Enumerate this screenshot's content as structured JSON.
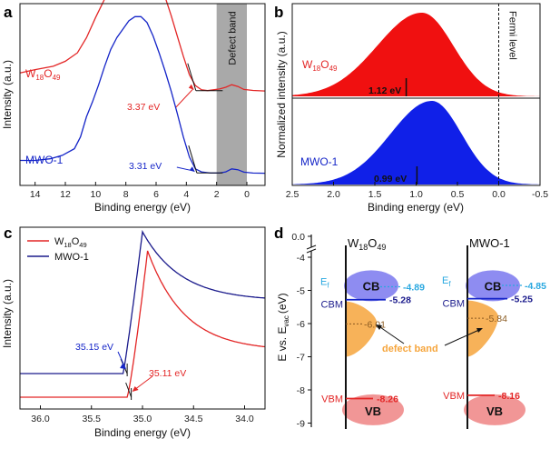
{
  "colors": {
    "red": "#e32626",
    "blue": "#1525c8",
    "navy": "#1b1b8c",
    "cyan": "#29a8e0",
    "orange": "#f6a53c",
    "gray": "#a9a9a9",
    "cbFill": "#7a78ee",
    "vbFill": "#f08b8b"
  },
  "panelA": {
    "label": "a",
    "xlabel": "Binding energy (eV)",
    "ylabel": "Intensity (a.u.)",
    "xticks": [
      "14",
      "12",
      "10",
      "8",
      "6",
      "4",
      "2",
      "0"
    ],
    "xlim": [
      15,
      -1.2
    ],
    "defectBandLabel": "Defect band",
    "defectBandRange": [
      2,
      0
    ],
    "series": [
      {
        "name": "W18O49",
        "base": "W",
        "sub1": "18",
        "mid": "O",
        "sub2": "49",
        "color": "#e32626",
        "edgeText": "3.37 eV",
        "edge": 3.37,
        "points": [
          [
            15,
            0.62
          ],
          [
            14,
            0.64
          ],
          [
            12.8,
            0.66
          ],
          [
            12,
            0.69
          ],
          [
            11.2,
            0.74
          ],
          [
            10.6,
            0.83
          ],
          [
            10,
            0.95
          ],
          [
            9.4,
            1.06
          ],
          [
            8.8,
            1.15
          ],
          [
            8.2,
            1.25
          ],
          [
            7.8,
            1.31
          ],
          [
            7.4,
            1.33
          ],
          [
            7.0,
            1.32
          ],
          [
            6.6,
            1.29
          ],
          [
            6.2,
            1.23
          ],
          [
            5.8,
            1.16
          ],
          [
            5.4,
            1.07
          ],
          [
            5.0,
            0.96
          ],
          [
            4.6,
            0.84
          ],
          [
            4.2,
            0.72
          ],
          [
            3.8,
            0.61
          ],
          [
            3.4,
            0.545
          ],
          [
            3.0,
            0.52
          ],
          [
            2.6,
            0.515
          ],
          [
            2.2,
            0.52
          ],
          [
            1.8,
            0.525
          ],
          [
            1.4,
            0.535
          ],
          [
            1.0,
            0.55
          ],
          [
            0.6,
            0.54
          ],
          [
            0.2,
            0.522
          ],
          [
            -0.4,
            0.516
          ],
          [
            -1.2,
            0.513
          ]
        ]
      },
      {
        "name": "MWO-1",
        "color": "#1525c8",
        "edgeText": "3.31 eV",
        "edge": 3.31,
        "points": [
          [
            15,
            0.1
          ],
          [
            14,
            0.1
          ],
          [
            13,
            0.11
          ],
          [
            12.2,
            0.13
          ],
          [
            11.4,
            0.17
          ],
          [
            11,
            0.24
          ],
          [
            10.6,
            0.36
          ],
          [
            10.2,
            0.45
          ],
          [
            9.8,
            0.55
          ],
          [
            9.4,
            0.66
          ],
          [
            9,
            0.76
          ],
          [
            8.6,
            0.83
          ],
          [
            8.2,
            0.88
          ],
          [
            7.8,
            0.93
          ],
          [
            7.4,
            0.955
          ],
          [
            7.0,
            0.955
          ],
          [
            6.6,
            0.92
          ],
          [
            6.2,
            0.84
          ],
          [
            5.8,
            0.74
          ],
          [
            5.4,
            0.63
          ],
          [
            5.0,
            0.51
          ],
          [
            4.6,
            0.38
          ],
          [
            4.2,
            0.24
          ],
          [
            3.8,
            0.12
          ],
          [
            3.4,
            0.05
          ],
          [
            3.0,
            0.032
          ],
          [
            2.4,
            0.025
          ],
          [
            1.8,
            0.025
          ],
          [
            1.4,
            0.032
          ],
          [
            1.0,
            0.05
          ],
          [
            0.6,
            0.045
          ],
          [
            0.2,
            0.03
          ],
          [
            -0.4,
            0.025
          ],
          [
            -1.2,
            0.024
          ]
        ]
      }
    ]
  },
  "panelB": {
    "label": "b",
    "xlabel": "Binding energy (eV)",
    "ylabel": "Normalized  intensity (a.u.)",
    "xticks": [
      "2.5",
      "2.0",
      "1.5",
      "1.0",
      "0.5",
      "0.0",
      "-0.5"
    ],
    "xlim": [
      2.5,
      -0.5
    ],
    "fermiLabel": "Fermi level",
    "series": [
      {
        "name": "W18O49",
        "base": "W",
        "sub1": "18",
        "mid": "O",
        "sub2": "49",
        "color": "#f01010",
        "valueText": "1.12 eV",
        "value": 1.12,
        "center": 0.93,
        "left": 0.54,
        "right": 0.38
      },
      {
        "name": "MWO-1",
        "color": "#1020e8",
        "valueText": "0.99 eV",
        "value": 0.99,
        "center": 0.81,
        "left": 0.5,
        "right": 0.36
      }
    ]
  },
  "panelC": {
    "label": "c",
    "xlabel": "Binding energy (eV)",
    "ylabel": "Intensity (a.u.)",
    "xticks": [
      "36.0",
      "35.5",
      "35.0",
      "34.5",
      "34.0"
    ],
    "xlim": [
      36.2,
      33.8
    ],
    "legend": [
      {
        "name": "W18O49",
        "base": "W",
        "sub1": "18",
        "mid": "O",
        "sub2": "49",
        "color": "#e32626"
      },
      {
        "name": "MWO-1",
        "color": "#1b1b8c"
      }
    ],
    "annotations": [
      {
        "text": "35.15 eV",
        "value": 35.15,
        "color": "#1525c8"
      },
      {
        "text": "35.11 eV",
        "value": 35.11,
        "color": "#e32626"
      }
    ]
  },
  "panelD": {
    "label": "d",
    "ylabel": "E vs. E",
    "ylabelSub": "vac",
    "ylabelUnit": "(eV)",
    "yticks": [
      "0.0",
      "-4",
      "-5",
      "-6",
      "-7",
      "-8",
      "-9"
    ],
    "defectLabel": "defect band",
    "columns": [
      {
        "title": "W18O49",
        "base": "W",
        "sub1": "18",
        "mid": "O",
        "sub2": "49",
        "ef": -4.89,
        "cbm": -5.28,
        "defect": -6.01,
        "vbm": -8.26,
        "efText": "-4.89",
        "cbmText": "-5.28",
        "defectText": "-6.01",
        "vbmText": "-8.26"
      },
      {
        "title": "MWO-1",
        "ef": -4.85,
        "cbm": -5.25,
        "defect": -5.84,
        "vbm": -8.16,
        "efText": "-4.85",
        "cbmText": "-5.25",
        "defectText": "-5.84",
        "vbmText": "-8.16"
      }
    ],
    "labels": {
      "cb": "CB",
      "vb": "VB",
      "cbm": "CBM",
      "vbm": "VBM",
      "ef": "E",
      "efSub": "f"
    }
  }
}
